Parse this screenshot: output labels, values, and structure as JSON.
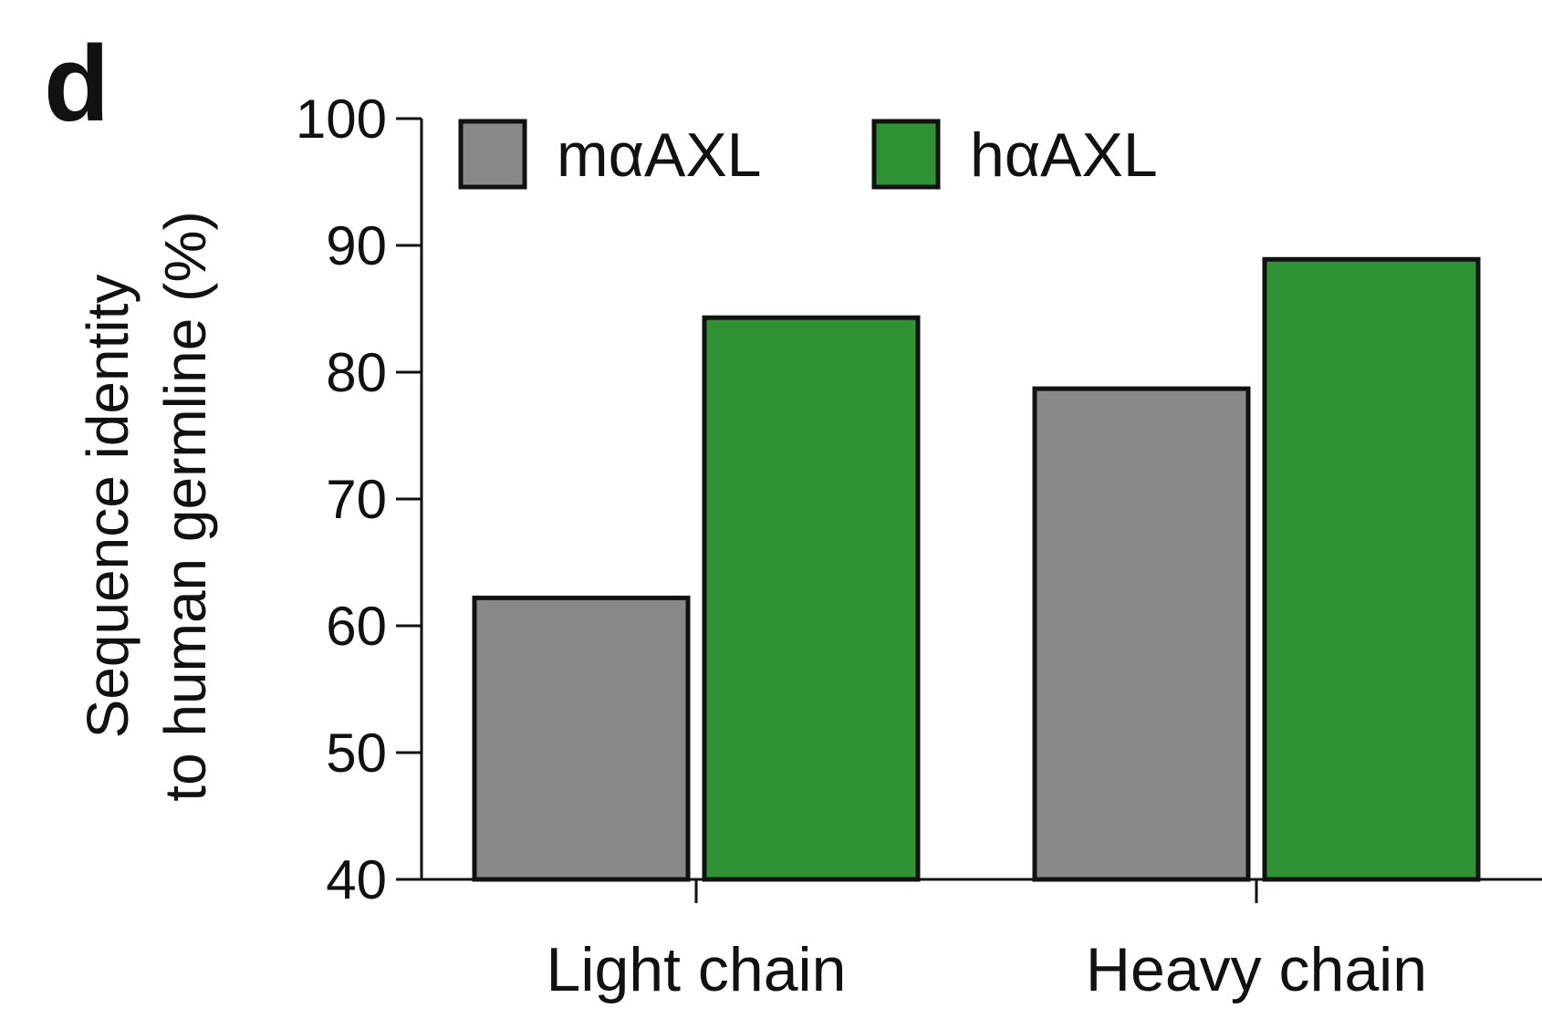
{
  "panel_label": "d",
  "chart_data": {
    "type": "bar",
    "categories": [
      "Light chain",
      "Heavy chain"
    ],
    "series": [
      {
        "name": "mαAXL",
        "values": [
          62.2,
          78.7
        ],
        "color": "#898989"
      },
      {
        "name": "hαAXL",
        "values": [
          84.3,
          88.9
        ],
        "color": "#2f9336"
      }
    ],
    "title": "",
    "ylabel_line1": "Sequence identity",
    "ylabel_line2": "to human germline (%)",
    "ylim": [
      40,
      100
    ],
    "yticks": [
      "40",
      "50",
      "60",
      "70",
      "80",
      "90",
      "100"
    ],
    "grid": false,
    "legend_position": "top"
  }
}
